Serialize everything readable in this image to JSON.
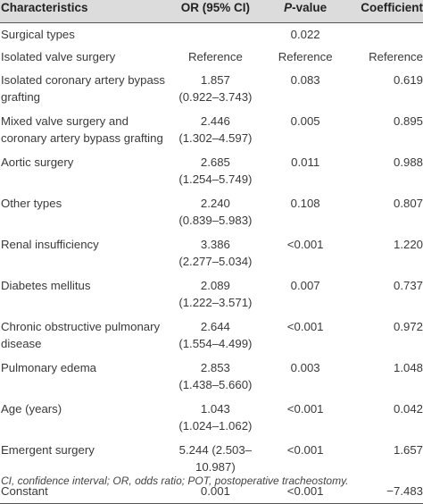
{
  "table": {
    "headers": {
      "characteristics": "Characteristics",
      "or": "OR (95% CI)",
      "p_letter": "P",
      "p_suffix": "-value",
      "coefficient": "Coefficient"
    },
    "rows": [
      {
        "label": "Surgical types",
        "or": "",
        "or_ci": "",
        "p": "0.022",
        "coef": ""
      },
      {
        "label": "Isolated valve surgery",
        "or": "Reference",
        "or_ci": "",
        "p": "Reference",
        "coef": "Reference"
      },
      {
        "label": "Isolated coronary artery bypass grafting",
        "or": "1.857",
        "or_ci": "(0.922–3.743)",
        "p": "0.083",
        "coef": "0.619"
      },
      {
        "label": "Mixed valve surgery and coronary artery bypass grafting",
        "or": "2.446",
        "or_ci": "(1.302–4.597)",
        "p": "0.005",
        "coef": "0.895"
      },
      {
        "label": "Aortic surgery",
        "or": "2.685",
        "or_ci": "(1.254–5.749)",
        "p": "0.011",
        "coef": "0.988"
      },
      {
        "label": "Other types",
        "or": "2.240",
        "or_ci": "(0.839–5.983)",
        "p": "0.108",
        "coef": "0.807"
      },
      {
        "label": "Renal insufficiency",
        "or": "3.386",
        "or_ci": "(2.277–5.034)",
        "p": "<0.001",
        "coef": "1.220"
      },
      {
        "label": "Diabetes mellitus",
        "or": "2.089",
        "or_ci": "(1.222–3.571)",
        "p": "0.007",
        "coef": "0.737"
      },
      {
        "label": "Chronic obstructive pulmonary disease",
        "or": "2.644",
        "or_ci": "(1.554–4.499)",
        "p": "<0.001",
        "coef": "0.972"
      },
      {
        "label": "Pulmonary edema",
        "or": "2.853",
        "or_ci": "(1.438–5.660)",
        "p": "0.003",
        "coef": "1.048"
      },
      {
        "label": "Age (years)",
        "or": "1.043",
        "or_ci": "(1.024–1.062)",
        "p": "<0.001",
        "coef": "0.042"
      },
      {
        "label": "Emergent surgery",
        "or": "5.244 (2.503–",
        "or_ci": "10.987)",
        "p": "<0.001",
        "coef": "1.657"
      },
      {
        "label": "Constant",
        "or": "0.001",
        "or_ci": "",
        "p": "<0.001",
        "coef": "−7.483"
      }
    ]
  },
  "footnote": "CI, confidence interval; OR, odds ratio; POT, postoperative tracheostomy."
}
